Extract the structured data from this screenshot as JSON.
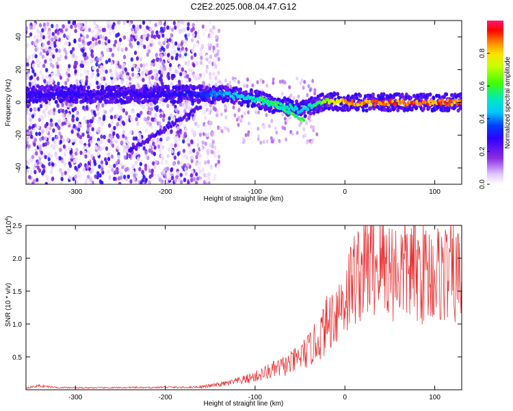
{
  "figure": {
    "title": "C2E2.2025.008.04.47.G12"
  },
  "chart_data": [
    {
      "type": "heatmap",
      "xlabel": "Height of straight line (km)",
      "ylabel": "Frequency (Hz)",
      "xlim": [
        -355,
        130
      ],
      "ylim": [
        -50,
        50
      ],
      "x_ticks": [
        -300,
        -200,
        -100,
        0,
        100
      ],
      "x_tick_labels": [
        "-300",
        "-200",
        "-100",
        "0",
        "100"
      ],
      "y_ticks": [
        -40,
        -20,
        0,
        20,
        40
      ],
      "y_tick_labels": [
        "-40",
        "-20",
        "0",
        "20",
        "40"
      ],
      "colorbar": {
        "label": "Normalized spectral amplitude",
        "range": [
          0,
          1
        ],
        "ticks": [
          0.0,
          0.2,
          0.4,
          0.6,
          0.8
        ],
        "tick_labels": [
          "0.0",
          "0.2",
          "0.4",
          "0.6",
          "0.8"
        ]
      },
      "main_ridge": {
        "description_points_x": [
          -355,
          -300,
          -250,
          -200,
          -160,
          -140,
          -120,
          -100,
          -80,
          -60,
          -50,
          -40,
          -30,
          -20,
          0,
          50,
          100,
          130
        ],
        "frequency": [
          5,
          5,
          5,
          5,
          5,
          5,
          4,
          2,
          -1,
          -3,
          -5,
          -3,
          -1,
          1,
          0,
          0,
          0,
          0
        ],
        "amplitude": [
          0.3,
          0.3,
          0.28,
          0.3,
          0.35,
          0.45,
          0.5,
          0.55,
          0.6,
          0.55,
          0.5,
          0.55,
          0.6,
          0.75,
          0.9,
          0.95,
          0.95,
          0.9
        ]
      }
    },
    {
      "type": "line",
      "xlabel": "Height of straight line (km)",
      "ylabel": "SNR (10 * v/v)",
      "y_multiplier_label": "(x10",
      "y_multiplier_exp": "4",
      "y_multiplier_close": ")",
      "xlim": [
        -355,
        130
      ],
      "ylim": [
        0,
        25000
      ],
      "x_ticks": [
        -300,
        -200,
        -100,
        0,
        100
      ],
      "x_tick_labels": [
        "-300",
        "-200",
        "-100",
        "0",
        "100"
      ],
      "y_ticks": [
        5000,
        10000,
        15000,
        20000,
        25000
      ],
      "y_tick_labels": [
        "0.5",
        "1.0",
        "1.5",
        "2.0",
        "2.5"
      ],
      "line_color": "#e83030",
      "series": [
        {
          "name": "SNR",
          "x": [
            -355,
            -340,
            -320,
            -300,
            -280,
            -260,
            -240,
            -220,
            -200,
            -180,
            -160,
            -150,
            -140,
            -130,
            -120,
            -110,
            -100,
            -90,
            -80,
            -70,
            -60,
            -50,
            -40,
            -30,
            -20,
            -10,
            0,
            10,
            20,
            30,
            40,
            50,
            60,
            70,
            80,
            90,
            100,
            110,
            120,
            130
          ],
          "y": [
            300,
            600,
            350,
            300,
            320,
            300,
            350,
            320,
            400,
            350,
            450,
            600,
            800,
            1000,
            1300,
            1600,
            2000,
            2500,
            3000,
            3500,
            4000,
            5000,
            6000,
            7500,
            10000,
            12000,
            14000,
            17000,
            18500,
            19000,
            19500,
            18500,
            18000,
            18500,
            18000,
            18000,
            17500,
            18000,
            17500,
            17000
          ]
        }
      ]
    }
  ]
}
